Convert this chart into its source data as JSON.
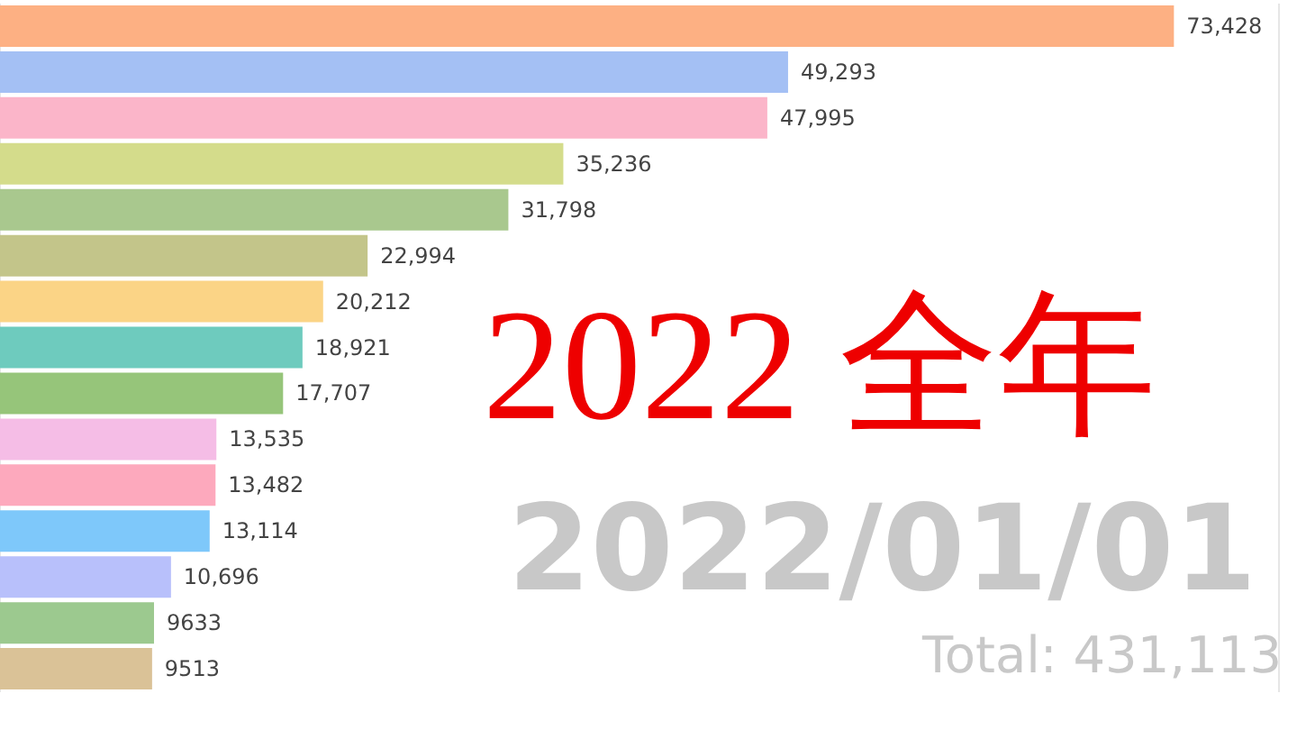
{
  "chart_data": {
    "type": "bar",
    "orientation": "horizontal",
    "categories": [
      null,
      null,
      null,
      null,
      null,
      null,
      null,
      null,
      null,
      null,
      null,
      null,
      null,
      null,
      null
    ],
    "values": [
      73428,
      49293,
      47995,
      35236,
      31798,
      22994,
      20212,
      18921,
      17707,
      13535,
      13482,
      13114,
      10696,
      9633,
      9513
    ],
    "value_labels": [
      "73,428",
      "49,293",
      "47,995",
      "35,236",
      "31,798",
      "22,994",
      "20,212",
      "18,921",
      "17,707",
      "13,535",
      "13,482",
      "13,114",
      "10,696",
      "9633",
      "9513"
    ],
    "colors": [
      "#fdb083",
      "#a4c0f4",
      "#fbb5c9",
      "#d4dc8b",
      "#a9c88e",
      "#c3c58a",
      "#fbd486",
      "#6ecbbe",
      "#96c57a",
      "#f5bde6",
      "#fda9bd",
      "#7ec8fa",
      "#b8c0fb",
      "#9cc98f",
      "#dac297"
    ],
    "xlim": [
      0,
      80000
    ],
    "grid": "x",
    "annotations": [
      "2022 全年",
      "2022/01/01",
      "Total: 431,113"
    ]
  }
}
